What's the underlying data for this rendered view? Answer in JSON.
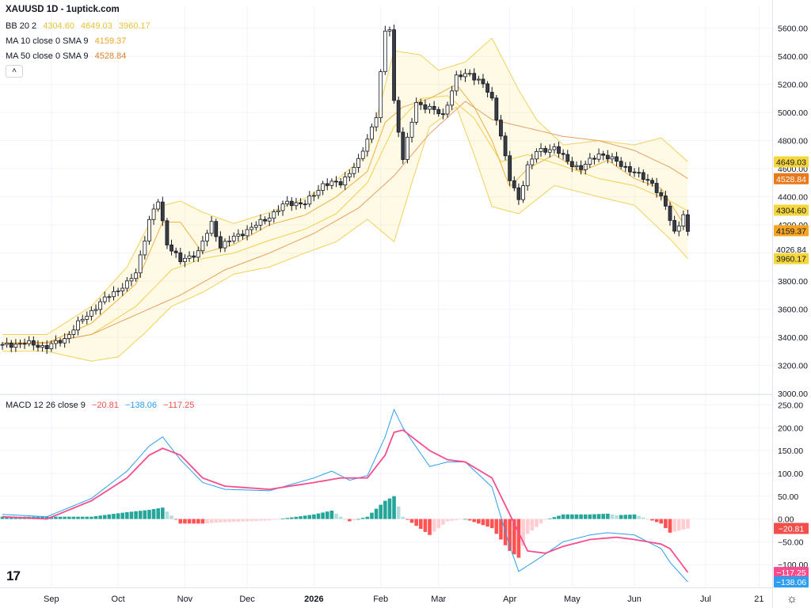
{
  "legend": {
    "symbol": "XAUUSD 1D - 1uptick.com",
    "bb": {
      "label": "BB 20 2",
      "values": [
        "4304.60",
        "4649.03",
        "3960.17"
      ],
      "color": "#e5c33b"
    },
    "ma10": {
      "label": "MA 10 close 0 SMA 9",
      "value": "4159.37",
      "color": "#f0a528"
    },
    "ma50": {
      "label": "MA 50 close 0 SMA 9",
      "value": "4528.84",
      "color": "#e0822d"
    },
    "macd": {
      "label": "MACD 12 26 close 9",
      "values": [
        "−20.81",
        "−138.06",
        "−117.25"
      ],
      "colors": [
        "#f0504b",
        "#2e9ef0",
        "#f0504b"
      ]
    }
  },
  "icons": {
    "collapse": "˄",
    "logo": "17",
    "settings": "☼"
  },
  "chart_data": [
    {
      "type": "candlestick",
      "title": "XAUUSD 1D",
      "ylim": [
        3000,
        5700
      ],
      "y_ticks": [
        "3000.00",
        "3200.00",
        "3400.00",
        "3600.00",
        "3800.00",
        "4000.00",
        "4200.00",
        "4400.00",
        "4600.00",
        "4800.00",
        "5000.00",
        "5200.00",
        "5400.00",
        "5600.00"
      ],
      "x_ticks": [
        "Sep",
        "Oct",
        "Nov",
        "Dec",
        "2026",
        "Feb",
        "Mar",
        "Apr",
        "May",
        "Jun",
        "Jul",
        "21"
      ],
      "bar_count": 155,
      "bb_basis_anchors": [
        [
          0,
          3360
        ],
        [
          10,
          3365
        ],
        [
          20,
          3420
        ],
        [
          30,
          3620
        ],
        [
          38,
          3880
        ],
        [
          45,
          3960
        ],
        [
          52,
          4000
        ],
        [
          60,
          4090
        ],
        [
          68,
          4170
        ],
        [
          75,
          4280
        ],
        [
          82,
          4500
        ],
        [
          88,
          4900
        ],
        [
          94,
          5100
        ],
        [
          100,
          5120
        ],
        [
          106,
          4960
        ],
        [
          112,
          4650
        ],
        [
          118,
          4700
        ],
        [
          126,
          4620
        ],
        [
          134,
          4530
        ],
        [
          142,
          4480
        ],
        [
          150,
          4370
        ],
        [
          154,
          4300
        ]
      ],
      "bb_upper_anchors": [
        [
          0,
          3420
        ],
        [
          10,
          3420
        ],
        [
          20,
          3620
        ],
        [
          28,
          3900
        ],
        [
          35,
          4330
        ],
        [
          40,
          4370
        ],
        [
          45,
          4290
        ],
        [
          52,
          4210
        ],
        [
          60,
          4290
        ],
        [
          68,
          4390
        ],
        [
          75,
          4520
        ],
        [
          82,
          4700
        ],
        [
          88,
          5440
        ],
        [
          94,
          5410
        ],
        [
          98,
          5300
        ],
        [
          104,
          5360
        ],
        [
          110,
          5530
        ],
        [
          116,
          5160
        ],
        [
          120,
          4950
        ],
        [
          126,
          4770
        ],
        [
          134,
          4800
        ],
        [
          142,
          4770
        ],
        [
          148,
          4820
        ],
        [
          154,
          4650
        ]
      ],
      "bb_lower_anchors": [
        [
          0,
          3300
        ],
        [
          10,
          3300
        ],
        [
          20,
          3230
        ],
        [
          26,
          3260
        ],
        [
          32,
          3430
        ],
        [
          38,
          3620
        ],
        [
          45,
          3720
        ],
        [
          52,
          3850
        ],
        [
          60,
          3900
        ],
        [
          68,
          4000
        ],
        [
          75,
          4080
        ],
        [
          82,
          4240
        ],
        [
          88,
          4080
        ],
        [
          92,
          4500
        ],
        [
          96,
          4900
        ],
        [
          102,
          5040
        ],
        [
          106,
          4700
        ],
        [
          110,
          4330
        ],
        [
          116,
          4280
        ],
        [
          124,
          4480
        ],
        [
          134,
          4400
        ],
        [
          142,
          4340
        ],
        [
          150,
          4100
        ],
        [
          154,
          3960
        ]
      ],
      "ma10_anchors": [
        [
          0,
          3360
        ],
        [
          10,
          3360
        ],
        [
          20,
          3500
        ],
        [
          30,
          3780
        ],
        [
          36,
          4220
        ],
        [
          40,
          4220
        ],
        [
          45,
          4000
        ],
        [
          52,
          4060
        ],
        [
          60,
          4200
        ],
        [
          68,
          4270
        ],
        [
          75,
          4400
        ],
        [
          82,
          4580
        ],
        [
          86,
          4930
        ],
        [
          90,
          5040
        ],
        [
          96,
          5100
        ],
        [
          102,
          5200
        ],
        [
          106,
          5040
        ],
        [
          110,
          4800
        ],
        [
          114,
          4470
        ],
        [
          118,
          4600
        ],
        [
          124,
          4700
        ],
        [
          130,
          4580
        ],
        [
          136,
          4660
        ],
        [
          142,
          4530
        ],
        [
          148,
          4460
        ],
        [
          154,
          4160
        ]
      ],
      "ma50_anchors": [
        [
          0,
          3350
        ],
        [
          10,
          3360
        ],
        [
          20,
          3420
        ],
        [
          30,
          3560
        ],
        [
          40,
          3700
        ],
        [
          50,
          3880
        ],
        [
          60,
          4000
        ],
        [
          70,
          4140
        ],
        [
          80,
          4320
        ],
        [
          88,
          4550
        ],
        [
          96,
          4850
        ],
        [
          104,
          5080
        ],
        [
          110,
          4950
        ],
        [
          118,
          4890
        ],
        [
          126,
          4830
        ],
        [
          134,
          4800
        ],
        [
          142,
          4730
        ],
        [
          150,
          4610
        ],
        [
          154,
          4530
        ]
      ],
      "close_anchors": [
        [
          0,
          3340
        ],
        [
          5,
          3360
        ],
        [
          10,
          3330
        ],
        [
          14,
          3390
        ],
        [
          18,
          3530
        ],
        [
          24,
          3700
        ],
        [
          28,
          3780
        ],
        [
          30,
          3860
        ],
        [
          33,
          4230
        ],
        [
          35,
          4370
        ],
        [
          37,
          4070
        ],
        [
          40,
          3940
        ],
        [
          44,
          4010
        ],
        [
          47,
          4210
        ],
        [
          49,
          4050
        ],
        [
          52,
          4110
        ],
        [
          56,
          4180
        ],
        [
          60,
          4260
        ],
        [
          64,
          4360
        ],
        [
          68,
          4350
        ],
        [
          72,
          4490
        ],
        [
          76,
          4500
        ],
        [
          80,
          4650
        ],
        [
          84,
          4980
        ],
        [
          86,
          5570
        ],
        [
          87,
          5600
        ],
        [
          88,
          5080
        ],
        [
          90,
          4670
        ],
        [
          93,
          5070
        ],
        [
          96,
          5030
        ],
        [
          99,
          4980
        ],
        [
          102,
          5250
        ],
        [
          105,
          5280
        ],
        [
          108,
          5200
        ],
        [
          110,
          5090
        ],
        [
          112,
          4840
        ],
        [
          114,
          4520
        ],
        [
          116,
          4380
        ],
        [
          118,
          4620
        ],
        [
          120,
          4720
        ],
        [
          124,
          4750
        ],
        [
          127,
          4650
        ],
        [
          130,
          4600
        ],
        [
          134,
          4710
        ],
        [
          138,
          4650
        ],
        [
          142,
          4570
        ],
        [
          146,
          4500
        ],
        [
          149,
          4330
        ],
        [
          151,
          4150
        ],
        [
          153,
          4270
        ],
        [
          155,
          4000
        ]
      ],
      "last_close": 4026.84,
      "last_close_label": "4026.84",
      "label_colors": {
        "bb": "#f5d63d",
        "ma50": "#e8791c",
        "ma10": "#f5a524",
        "last": "#ffffff"
      }
    },
    {
      "type": "macd",
      "title": "MACD 12 26 close 9",
      "ylim": [
        -150,
        270
      ],
      "y_ticks": [
        "250.00",
        "200.00",
        "150.00",
        "100.00",
        "50.00",
        "0.00",
        "−50.00",
        "−100.00"
      ],
      "macd_anchors": [
        [
          0,
          10
        ],
        [
          10,
          5
        ],
        [
          20,
          45
        ],
        [
          28,
          105
        ],
        [
          33,
          160
        ],
        [
          36,
          180
        ],
        [
          40,
          130
        ],
        [
          45,
          80
        ],
        [
          50,
          65
        ],
        [
          60,
          62
        ],
        [
          70,
          90
        ],
        [
          74,
          105
        ],
        [
          78,
          85
        ],
        [
          82,
          95
        ],
        [
          86,
          180
        ],
        [
          88,
          240
        ],
        [
          90,
          200
        ],
        [
          96,
          115
        ],
        [
          100,
          125
        ],
        [
          104,
          125
        ],
        [
          110,
          70
        ],
        [
          114,
          -60
        ],
        [
          116,
          -115
        ],
        [
          120,
          -90
        ],
        [
          126,
          -50
        ],
        [
          132,
          -35
        ],
        [
          136,
          -30
        ],
        [
          142,
          -35
        ],
        [
          148,
          -65
        ],
        [
          150,
          -95
        ],
        [
          154,
          -138
        ]
      ],
      "signal_anchors": [
        [
          0,
          5
        ],
        [
          10,
          0
        ],
        [
          20,
          40
        ],
        [
          28,
          90
        ],
        [
          33,
          140
        ],
        [
          36,
          155
        ],
        [
          40,
          140
        ],
        [
          45,
          90
        ],
        [
          50,
          72
        ],
        [
          60,
          65
        ],
        [
          70,
          80
        ],
        [
          76,
          90
        ],
        [
          82,
          90
        ],
        [
          86,
          140
        ],
        [
          88,
          190
        ],
        [
          90,
          195
        ],
        [
          96,
          150
        ],
        [
          100,
          130
        ],
        [
          104,
          125
        ],
        [
          110,
          90
        ],
        [
          114,
          10
        ],
        [
          118,
          -70
        ],
        [
          122,
          -75
        ],
        [
          126,
          -60
        ],
        [
          132,
          -45
        ],
        [
          138,
          -40
        ],
        [
          142,
          -45
        ],
        [
          148,
          -55
        ],
        [
          150,
          -65
        ],
        [
          154,
          -117
        ]
      ],
      "labels": [
        {
          "text": "−20.81",
          "value": -20.81,
          "color": "#f0504b"
        },
        {
          "text": "−117.25",
          "value": -117.25,
          "color": "#f74c8d"
        },
        {
          "text": "−138.06",
          "value": -138.06,
          "color": "#2e9ef0"
        }
      ]
    }
  ]
}
